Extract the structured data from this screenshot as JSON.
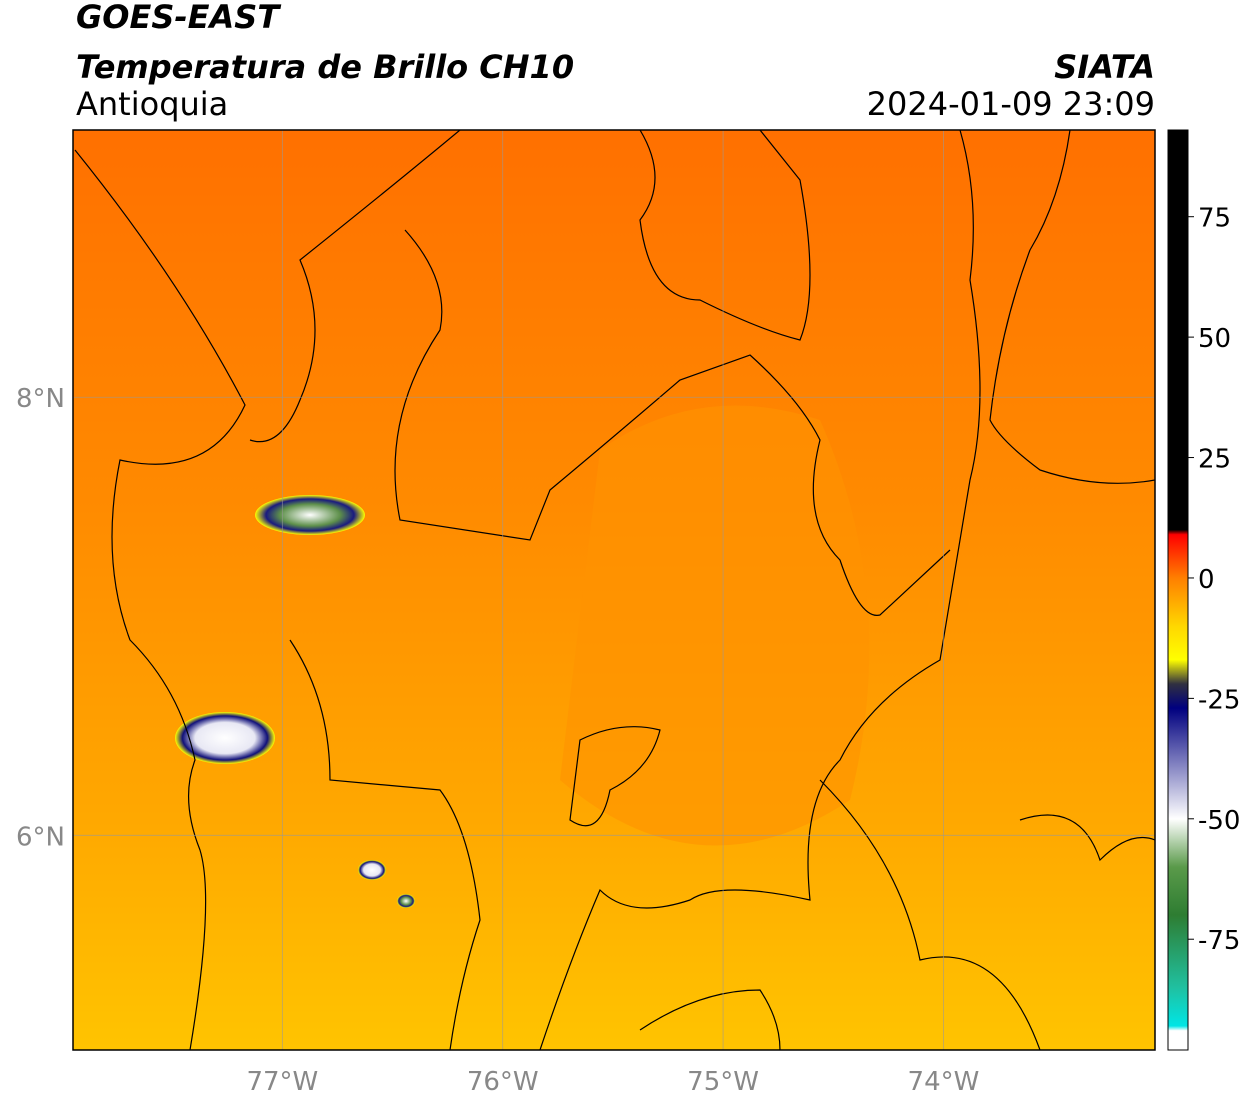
{
  "header": {
    "title": "GOES-EAST",
    "subtitle": "Temperatura de Brillo CH10",
    "region": "Antioquia",
    "source": "SIATA",
    "timestamp": "2024-01-09 23:09"
  },
  "map": {
    "xlim": [
      -77.95,
      -73.04
    ],
    "ylim": [
      5.02,
      9.22
    ],
    "xticks": [
      {
        "value": -77,
        "label": "77°W"
      },
      {
        "value": -76,
        "label": "76°W"
      },
      {
        "value": -75,
        "label": "75°W"
      },
      {
        "value": -74,
        "label": "74°W"
      }
    ],
    "yticks": [
      {
        "value": 6,
        "label": "6°N"
      },
      {
        "value": 8,
        "label": "8°N"
      }
    ],
    "grid": true
  },
  "colorbar": {
    "lim": [
      -98,
      93
    ],
    "ticks": [
      -75,
      -50,
      -25,
      0,
      25,
      50,
      75
    ],
    "stops": [
      {
        "value": 93,
        "color": "#000000"
      },
      {
        "value": 10,
        "color": "#000000"
      },
      {
        "value": 9,
        "color": "#ff0000"
      },
      {
        "value": 0,
        "color": "#ff7f00"
      },
      {
        "value": -10,
        "color": "#ffd700"
      },
      {
        "value": -17,
        "color": "#ffff00"
      },
      {
        "value": -22,
        "color": "#303040"
      },
      {
        "value": -27,
        "color": "#00007f"
      },
      {
        "value": -40,
        "color": "#9090c8"
      },
      {
        "value": -50,
        "color": "#ffffff"
      },
      {
        "value": -60,
        "color": "#5a9a4a"
      },
      {
        "value": -70,
        "color": "#2e7d32"
      },
      {
        "value": -85,
        "color": "#20c0a0"
      },
      {
        "value": -93,
        "color": "#00e5e5"
      },
      {
        "value": -94,
        "color": "#ffffff"
      },
      {
        "value": -98,
        "color": "#ffffff"
      }
    ]
  }
}
